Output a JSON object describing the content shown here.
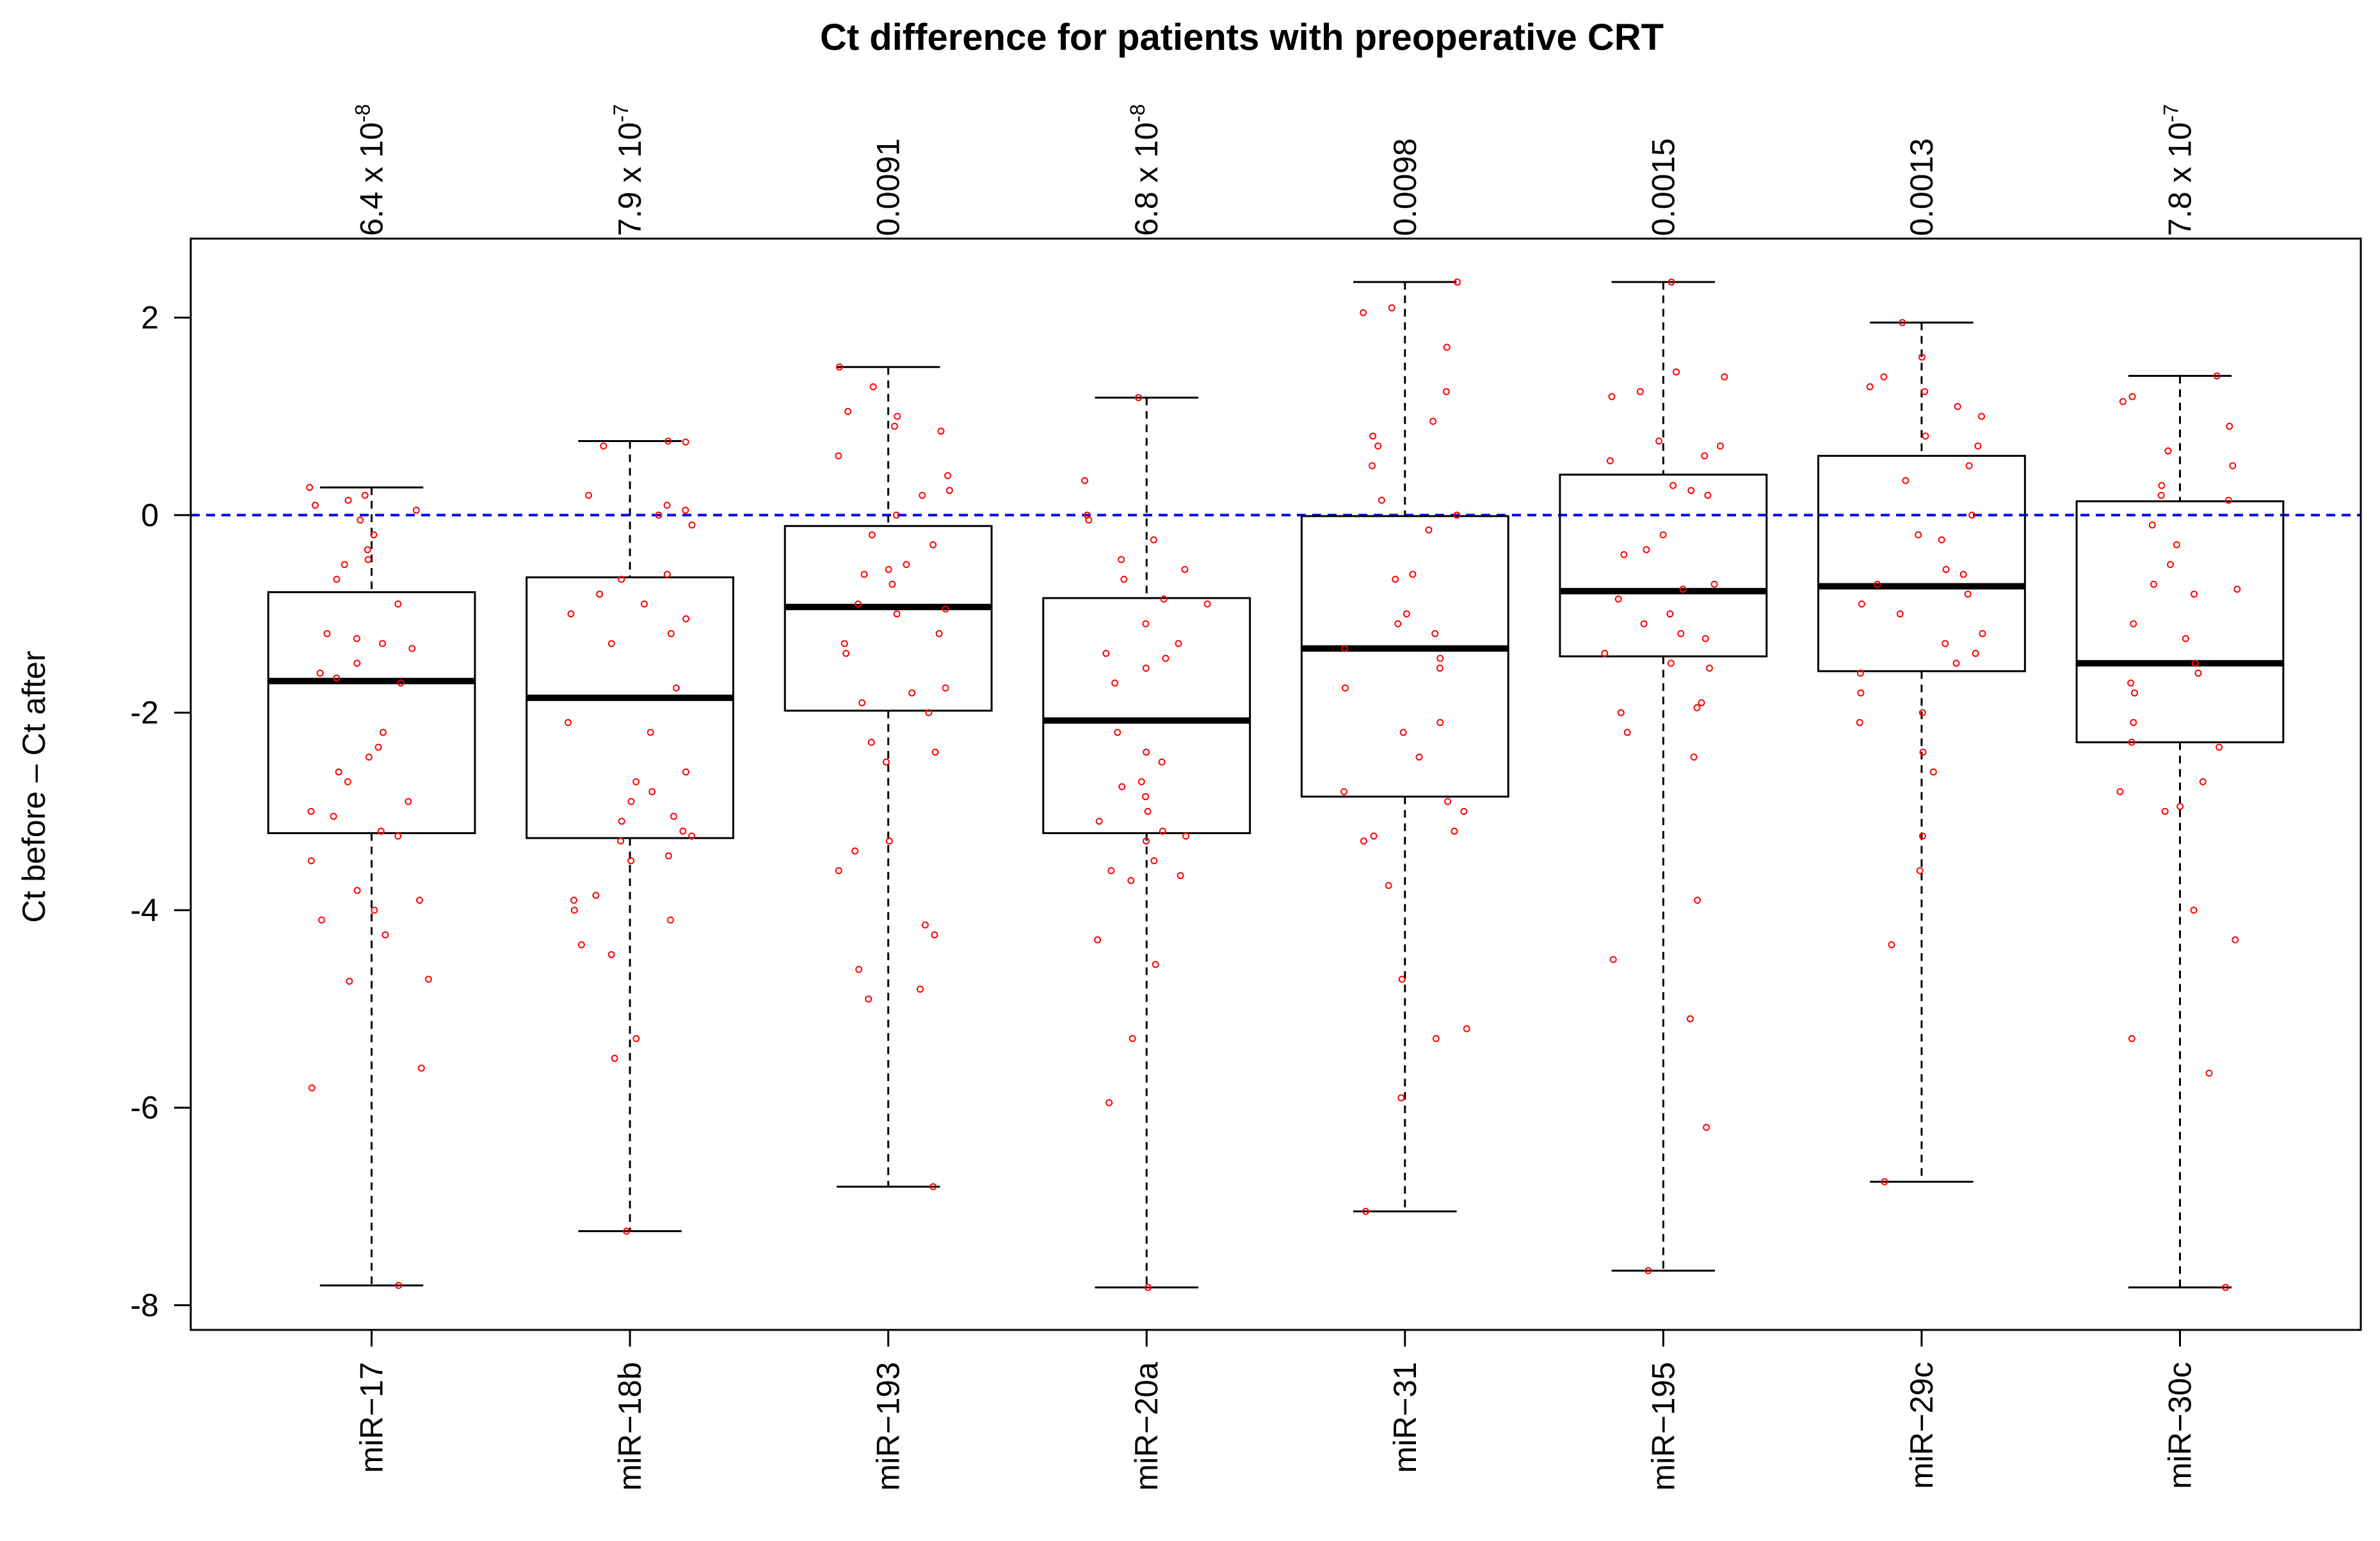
{
  "chart_data": {
    "type": "boxplot",
    "title": "Ct difference for patients with preoperative CRT",
    "ylabel": "Ct before – Ct after",
    "xlabel": "",
    "ylim": [
      -8.25,
      2.8
    ],
    "yticks": [
      -8,
      -6,
      -4,
      -2,
      0,
      2
    ],
    "reference_line": {
      "y": 0,
      "color": "#0000ff",
      "style": "dashed"
    },
    "point_color": "#ff0000",
    "groups": [
      {
        "name": "miR−17",
        "pvalue": {
          "mantissa": "6.4 x 10",
          "exp": "-8"
        },
        "whisker_low": -7.8,
        "q1": -3.22,
        "median": -1.68,
        "q3": -0.78,
        "whisker_high": 0.28
      },
      {
        "name": "miR−18b",
        "pvalue": {
          "mantissa": "7.9 x 10",
          "exp": "-7"
        },
        "whisker_low": -7.25,
        "q1": -3.27,
        "median": -1.85,
        "q3": -0.63,
        "whisker_high": 0.75
      },
      {
        "name": "miR−193",
        "pvalue": {
          "mantissa": "0.0091",
          "exp": ""
        },
        "whisker_low": -6.8,
        "q1": -1.98,
        "median": -0.93,
        "q3": -0.11,
        "whisker_high": 1.5
      },
      {
        "name": "miR−20a",
        "pvalue": {
          "mantissa": "6.8 x 10",
          "exp": "-8"
        },
        "whisker_low": -7.82,
        "q1": -3.22,
        "median": -2.08,
        "q3": -0.84,
        "whisker_high": 1.19
      },
      {
        "name": "miR−31",
        "pvalue": {
          "mantissa": "0.0098",
          "exp": ""
        },
        "whisker_low": -7.05,
        "q1": -2.85,
        "median": -1.35,
        "q3": -0.01,
        "whisker_high": 2.36
      },
      {
        "name": "miR−195",
        "pvalue": {
          "mantissa": "0.0015",
          "exp": ""
        },
        "whisker_low": -7.65,
        "q1": -1.43,
        "median": -0.77,
        "q3": 0.41,
        "whisker_high": 2.36
      },
      {
        "name": "miR−29c",
        "pvalue": {
          "mantissa": "0.0013",
          "exp": ""
        },
        "whisker_low": -6.75,
        "q1": -1.58,
        "median": -0.72,
        "q3": 0.6,
        "whisker_high": 1.95
      },
      {
        "name": "miR−30c",
        "pvalue": {
          "mantissa": "7.8 x 10",
          "exp": "-7"
        },
        "whisker_low": -7.82,
        "q1": -2.3,
        "median": -1.5,
        "q3": 0.14,
        "whisker_high": 1.41
      }
    ],
    "points": [
      [
        0.28,
        0.2,
        0.15,
        0.1,
        0.05,
        -0.05,
        -0.2,
        -0.35,
        -0.45,
        -0.5,
        -0.65,
        -0.9,
        -1.2,
        -1.25,
        -1.3,
        -1.35,
        -1.5,
        -1.6,
        -1.65,
        -1.7,
        -2.2,
        -2.35,
        -2.45,
        -2.6,
        -2.7,
        -2.9,
        -3.0,
        -3.05,
        -3.2,
        -3.25,
        -3.5,
        -3.8,
        -3.9,
        -4.0,
        -4.1,
        -4.25,
        -4.7,
        -4.72,
        -5.6,
        -5.8,
        -7.8
      ],
      [
        0.75,
        0.74,
        0.7,
        0.2,
        0.1,
        0.05,
        0.0,
        -0.1,
        -0.6,
        -0.65,
        -0.8,
        -0.9,
        -1.0,
        -1.05,
        -1.2,
        -1.3,
        -1.75,
        -2.1,
        -2.2,
        -2.6,
        -2.7,
        -2.8,
        -2.9,
        -3.05,
        -3.1,
        -3.2,
        -3.25,
        -3.3,
        -3.45,
        -3.5,
        -3.85,
        -3.9,
        -4.0,
        -4.1,
        -4.35,
        -4.45,
        -5.3,
        -5.5,
        -7.25
      ],
      [
        1.5,
        1.3,
        1.05,
        1.0,
        0.9,
        0.85,
        0.6,
        0.4,
        0.25,
        0.2,
        0.0,
        -0.2,
        -0.3,
        -0.5,
        -0.55,
        -0.6,
        -0.7,
        -0.9,
        -0.95,
        -1.0,
        -1.2,
        -1.3,
        -1.4,
        -1.75,
        -1.8,
        -1.9,
        -2.0,
        -2.3,
        -2.4,
        -2.5,
        -3.3,
        -3.4,
        -3.6,
        -4.15,
        -4.25,
        -4.6,
        -4.8,
        -4.9,
        -6.8
      ],
      [
        1.19,
        0.35,
        0.0,
        -0.05,
        -0.25,
        -0.45,
        -0.55,
        -0.65,
        -0.85,
        -0.9,
        -1.1,
        -1.3,
        -1.4,
        -1.45,
        -1.55,
        -1.7,
        -2.2,
        -2.4,
        -2.5,
        -2.7,
        -2.75,
        -2.85,
        -3.0,
        -3.1,
        -3.2,
        -3.25,
        -3.3,
        -3.5,
        -3.6,
        -3.65,
        -3.7,
        -4.3,
        -4.55,
        -5.3,
        -5.95,
        -7.82
      ],
      [
        2.36,
        2.1,
        2.05,
        1.7,
        1.25,
        0.95,
        0.8,
        0.7,
        0.5,
        0.15,
        0.0,
        -0.15,
        -0.6,
        -0.65,
        -1.0,
        -1.1,
        -1.2,
        -1.35,
        -1.45,
        -1.55,
        -1.75,
        -2.1,
        -2.2,
        -2.45,
        -2.8,
        -2.9,
        -3.0,
        -3.2,
        -3.25,
        -3.3,
        -3.75,
        -4.7,
        -5.2,
        -5.3,
        -5.9,
        -7.05
      ],
      [
        2.36,
        1.45,
        1.4,
        1.25,
        1.2,
        0.75,
        0.7,
        0.6,
        0.55,
        0.3,
        0.25,
        0.2,
        -0.2,
        -0.35,
        -0.4,
        -0.7,
        -0.75,
        -0.85,
        -1.0,
        -1.1,
        -1.2,
        -1.25,
        -1.4,
        -1.5,
        -1.55,
        -1.9,
        -1.95,
        -2.0,
        -2.2,
        -2.45,
        -3.9,
        -4.5,
        -5.1,
        -6.2,
        -7.65
      ],
      [
        1.95,
        1.6,
        1.4,
        1.3,
        1.25,
        1.1,
        1.0,
        0.8,
        0.7,
        0.5,
        0.35,
        0.0,
        -0.2,
        -0.25,
        -0.55,
        -0.6,
        -0.7,
        -0.8,
        -0.9,
        -1.0,
        -1.2,
        -1.3,
        -1.4,
        -1.5,
        -1.6,
        -1.8,
        -2.0,
        -2.1,
        -2.4,
        -2.6,
        -3.25,
        -3.6,
        -4.35,
        -6.75
      ],
      [
        1.41,
        1.2,
        1.15,
        0.9,
        0.65,
        0.5,
        0.3,
        0.2,
        0.15,
        -0.1,
        -0.3,
        -0.5,
        -0.7,
        -0.75,
        -0.8,
        -1.1,
        -1.25,
        -1.5,
        -1.6,
        -1.7,
        -1.8,
        -2.1,
        -2.3,
        -2.35,
        -2.7,
        -2.8,
        -2.95,
        -3.0,
        -4.0,
        -4.3,
        -5.3,
        -5.65,
        -7.82
      ]
    ]
  }
}
